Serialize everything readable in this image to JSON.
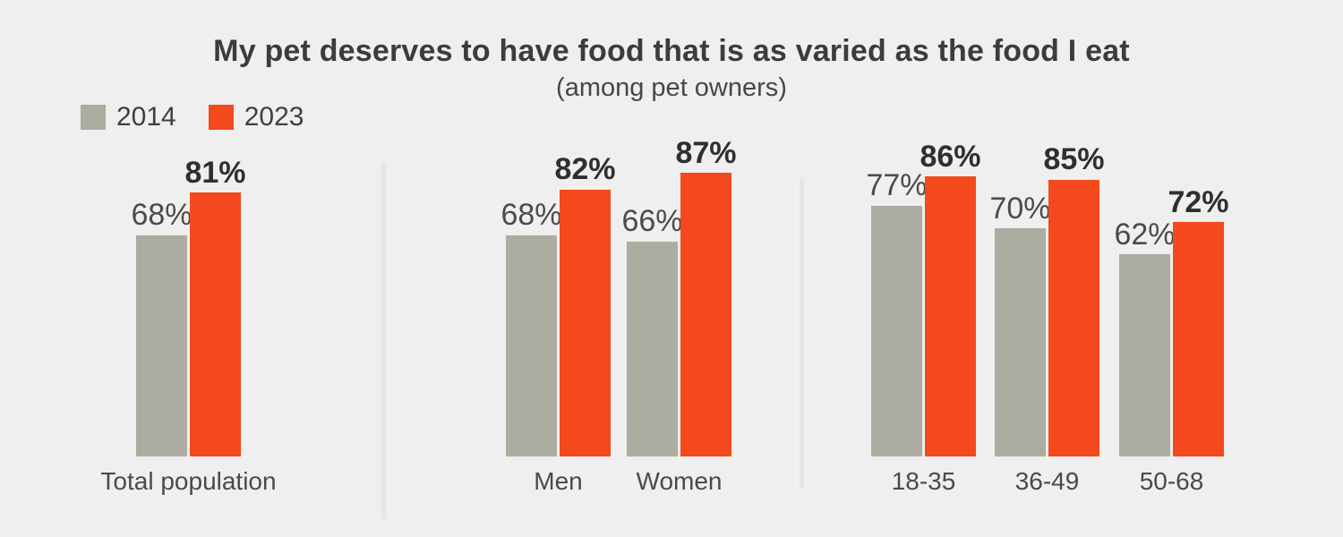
{
  "legend": {
    "items": [
      {
        "label": "2014",
        "color": "#ADACA0"
      },
      {
        "label": "2023",
        "color": "#F4491C"
      }
    ]
  },
  "colors": {
    "background": "#EFEFEF",
    "bar_2014": "#ADACA0",
    "bar_2023": "#F4491C",
    "title_text": "#3C3C3C",
    "subtitle_text": "#474747",
    "legend_text": "#3F3F3F",
    "label_2014": "#4B4B49",
    "label_2023": "#2F2F2F",
    "axis_label": "#4A4A48",
    "divider": "#E4E6DF"
  },
  "chart_data": {
    "type": "bar",
    "title": "My pet deserves to have food that is as varied as the food I eat",
    "subtitle": "(among pet owners)",
    "unit": "%",
    "ylim": [
      0,
      100
    ],
    "grid": false,
    "legend_position": "top-left",
    "value_labels": "above-bars",
    "series_names": [
      "2014",
      "2023"
    ],
    "groups": [
      {
        "panel": "total-population",
        "categories": [
          "Total population"
        ],
        "values_2014": [
          68
        ],
        "values_2023": [
          81
        ]
      },
      {
        "panel": "gender",
        "categories": [
          "Men",
          "Women"
        ],
        "values_2014": [
          68,
          66
        ],
        "values_2023": [
          82,
          87
        ]
      },
      {
        "panel": "age",
        "categories": [
          "18-35",
          "36-49",
          "50-68"
        ],
        "values_2014": [
          77,
          70,
          62
        ],
        "values_2023": [
          86,
          85,
          72
        ]
      }
    ]
  }
}
